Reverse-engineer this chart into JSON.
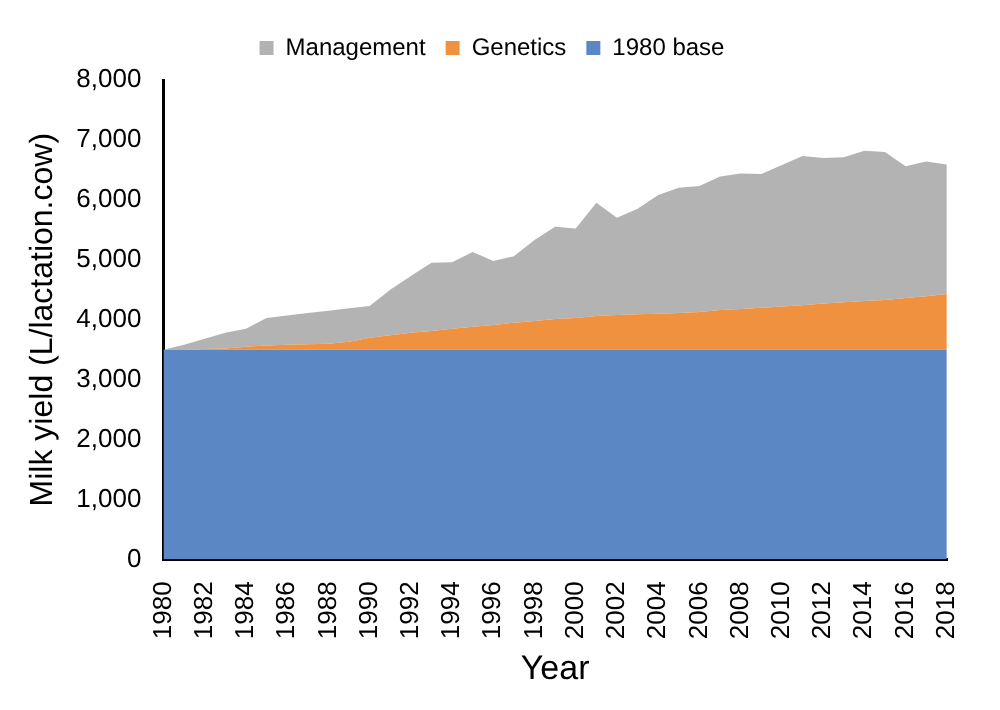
{
  "chart_data": {
    "type": "area",
    "stacked": true,
    "xlabel": "Year",
    "ylabel": "Milk yield (L/lactation.cow)",
    "categories": [
      "1980",
      null,
      "1982",
      null,
      "1984",
      null,
      "1986",
      null,
      "1988",
      null,
      "1990",
      null,
      "1992",
      null,
      "1994",
      null,
      "1996",
      null,
      "1998",
      null,
      "2000",
      null,
      "2002",
      null,
      "2004",
      null,
      "2006",
      null,
      "2008",
      null,
      "2010",
      null,
      "2012",
      null,
      "2014",
      null,
      "2016",
      null,
      "2018"
    ],
    "series": [
      {
        "name": "1980 base",
        "color": "#5b87c5",
        "values": [
          3500,
          3500,
          3500,
          3500,
          3500,
          3500,
          3500,
          3500,
          3500,
          3500,
          3500,
          3500,
          3500,
          3500,
          3500,
          3500,
          3500,
          3500,
          3500,
          3500,
          3500,
          3500,
          3500,
          3500,
          3500,
          3500,
          3500,
          3500,
          3500,
          3500,
          3500,
          3500,
          3500,
          3500,
          3500,
          3500,
          3500,
          3500,
          3500
        ]
      },
      {
        "name": "Genetics",
        "color": "#f0913f",
        "values": [
          0,
          0,
          10,
          20,
          50,
          70,
          80,
          90,
          100,
          130,
          200,
          240,
          280,
          310,
          350,
          380,
          410,
          450,
          480,
          510,
          530,
          560,
          580,
          590,
          600,
          610,
          630,
          660,
          680,
          700,
          720,
          740,
          770,
          790,
          810,
          830,
          860,
          890,
          930
        ]
      },
      {
        "name": "Management",
        "color": "#b3b3b3",
        "values": [
          0,
          80,
          170,
          260,
          300,
          460,
          490,
          520,
          550,
          560,
          530,
          760,
          950,
          1140,
          1110,
          1250,
          1070,
          1110,
          1350,
          1540,
          1490,
          1890,
          1620,
          1760,
          1980,
          2090,
          2100,
          2230,
          2260,
          2230,
          2360,
          2490,
          2430,
          2420,
          2510,
          2470,
          2200,
          2250,
          2160
        ]
      }
    ],
    "ylim": [
      0,
      8000
    ],
    "yticks": [
      0,
      {
        "value": 1000,
        "label": "1,000"
      },
      {
        "value": 2000,
        "label": "2,000"
      },
      {
        "value": 3000,
        "label": "3,000"
      },
      {
        "value": 4000,
        "label": "4,000"
      },
      {
        "value": 5000,
        "label": "5,000"
      },
      {
        "value": 6000,
        "label": "6,000"
      },
      {
        "value": 7000,
        "label": "7,000"
      },
      {
        "value": 8000,
        "label": "8,000"
      }
    ],
    "grid": false,
    "legend": "top"
  }
}
